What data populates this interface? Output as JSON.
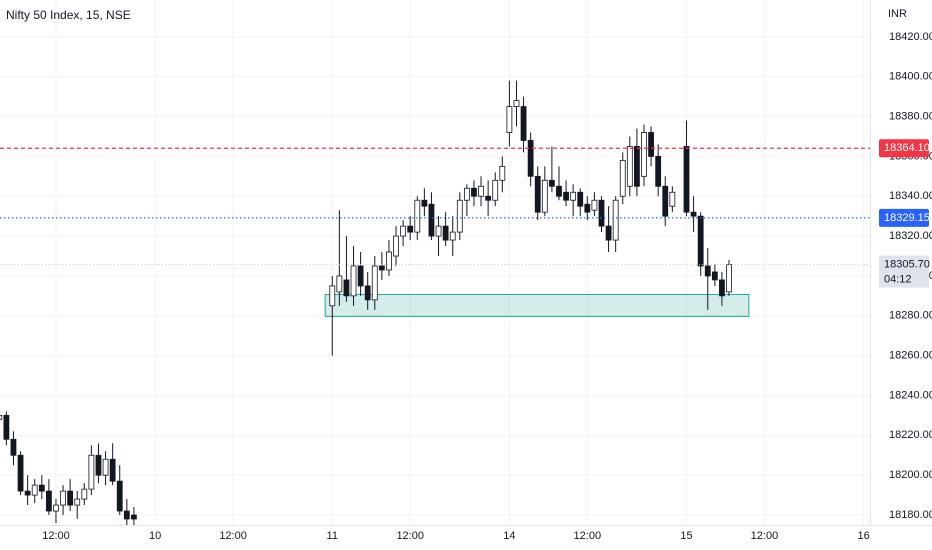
{
  "chart_data": {
    "type": "candlestick",
    "title": "Nifty 50 Index, 15, NSE",
    "currency": "INR",
    "x": [
      -47,
      -46,
      -45,
      -44,
      -43,
      -42,
      -41,
      -40,
      -39,
      -38,
      -37,
      -36,
      -35,
      -34,
      -33,
      -32,
      -31,
      -30,
      -29,
      -28,
      0,
      1,
      2,
      3,
      4,
      5,
      6,
      7,
      8,
      9,
      10,
      11,
      12,
      13,
      14,
      15,
      16,
      17,
      18,
      19,
      20,
      21,
      22,
      23,
      24,
      25,
      26,
      27,
      28,
      29,
      30,
      31,
      32,
      33,
      34,
      35,
      36,
      37,
      38,
      39,
      40,
      41,
      42,
      43,
      44,
      45,
      46,
      47,
      48,
      50,
      51,
      52,
      53,
      54,
      55,
      56
    ],
    "open": [
      18228,
      18230,
      18218,
      18210,
      18192,
      18190,
      18195,
      18192,
      18182,
      18185,
      18192,
      18185,
      18188,
      18193,
      18210,
      18200,
      18208,
      18197,
      18182,
      18180,
      18285,
      18292,
      18298,
      18290,
      18305,
      18295,
      18288,
      18305,
      18303,
      18310,
      18320,
      18325,
      18322,
      18338,
      18336,
      18320,
      18325,
      18318,
      18322,
      18338,
      18344,
      18340,
      18340,
      18338,
      18348,
      18372,
      18385,
      18385,
      18368,
      18350,
      18332,
      18348,
      18345,
      18342,
      18338,
      18342,
      18336,
      18333,
      18338,
      18325,
      18318,
      18340,
      18345,
      18365,
      18350,
      18372,
      18360,
      18345,
      18335,
      18365,
      18332,
      18330,
      18305,
      18302,
      18298,
      18292
    ],
    "high": [
      18235,
      18232,
      18222,
      18212,
      18200,
      18198,
      18200,
      18198,
      18188,
      18195,
      18198,
      18192,
      18196,
      18215,
      18216,
      18212,
      18216,
      18205,
      18188,
      18184,
      18300,
      18333,
      18320,
      18315,
      18312,
      18302,
      18310,
      18312,
      18318,
      18325,
      18328,
      18330,
      18340,
      18344,
      18342,
      18330,
      18332,
      18330,
      18342,
      18346,
      18348,
      18350,
      18348,
      18352,
      18360,
      18398,
      18398,
      18390,
      18372,
      18355,
      18355,
      18365,
      18355,
      18348,
      18346,
      18344,
      18340,
      18342,
      18340,
      18335,
      18340,
      18362,
      18370,
      18374,
      18376,
      18375,
      18366,
      18350,
      18345,
      18378,
      18340,
      18332,
      18314,
      18306,
      18302,
      18308
    ],
    "low": [
      18222,
      18215,
      18205,
      18190,
      18185,
      18186,
      18188,
      18180,
      18176,
      18180,
      18182,
      18178,
      18185,
      18190,
      18196,
      18195,
      18195,
      18180,
      18175,
      18172,
      18260,
      18285,
      18287,
      18285,
      18290,
      18283,
      18283,
      18298,
      18300,
      18305,
      18315,
      18318,
      18318,
      18330,
      18318,
      18310,
      18315,
      18310,
      18318,
      18330,
      18335,
      18335,
      18330,
      18335,
      18342,
      18365,
      18375,
      18362,
      18345,
      18328,
      18330,
      18342,
      18338,
      18335,
      18330,
      18330,
      18328,
      18330,
      18322,
      18312,
      18312,
      18336,
      18340,
      18340,
      18345,
      18355,
      18340,
      18325,
      18332,
      18330,
      18322,
      18300,
      18283,
      18295,
      18285,
      18290
    ],
    "close": [
      18230,
      18218,
      18210,
      18192,
      18190,
      18195,
      18192,
      18182,
      18185,
      18192,
      18185,
      18188,
      18193,
      18210,
      18200,
      18208,
      18197,
      18182,
      18178,
      18178,
      18295,
      18300,
      18290,
      18305,
      18295,
      18288,
      18305,
      18303,
      18312,
      18320,
      18325,
      18322,
      18338,
      18335,
      18320,
      18325,
      18318,
      18322,
      18338,
      18344,
      18340,
      18345,
      18338,
      18348,
      18355,
      18385,
      18388,
      18368,
      18350,
      18332,
      18348,
      18345,
      18340,
      18338,
      18342,
      18335,
      18332,
      18338,
      18325,
      18318,
      18338,
      18358,
      18365,
      18345,
      18372,
      18360,
      18345,
      18330,
      18342,
      18332,
      18330,
      18305,
      18300,
      18298,
      18290,
      18305.7
    ],
    "up_color": "#ffffff",
    "down_color": "#131722",
    "wick_color": "#131722",
    "xlim": [
      -46.9,
      75.9
    ],
    "ylim": [
      18177.5,
      18438.5
    ],
    "xticks": [
      {
        "value": -39,
        "label": "12:00"
      },
      {
        "value": -25,
        "label": "10"
      },
      {
        "value": -14,
        "label": "12:00"
      },
      {
        "value": 0,
        "label": "11"
      },
      {
        "value": 11,
        "label": "12:00"
      },
      {
        "value": 25,
        "label": "14"
      },
      {
        "value": 36,
        "label": "12:00"
      },
      {
        "value": 50,
        "label": "15"
      },
      {
        "value": 61,
        "label": "12:00"
      },
      {
        "value": 75,
        "label": "16"
      }
    ],
    "yticks": [
      {
        "value": 18180,
        "label": "18180.00"
      },
      {
        "value": 18200,
        "label": "18200.00"
      },
      {
        "value": 18220,
        "label": "18220.00"
      },
      {
        "value": 18240,
        "label": "18240.00"
      },
      {
        "value": 18260,
        "label": "18260.00"
      },
      {
        "value": 18280,
        "label": "18280.00"
      },
      {
        "value": 18300,
        "label": "18300.00"
      },
      {
        "value": 18320,
        "label": "18320.00"
      },
      {
        "value": 18340,
        "label": "18340.00"
      },
      {
        "value": 18360,
        "label": "18360.00"
      },
      {
        "value": 18380,
        "label": "18380.00"
      },
      {
        "value": 18400,
        "label": "18400.00"
      },
      {
        "value": 18420,
        "label": "18420.00"
      }
    ],
    "grid": true,
    "price_lines": [
      {
        "value": 18364.1,
        "label": "18364.10",
        "color": "#f23645",
        "style": "dashed"
      },
      {
        "value": 18329.15,
        "label": "18329.15",
        "color": "#2962ff",
        "style": "dotted"
      }
    ],
    "last_price": {
      "value": 18305.7,
      "label": "18305.70",
      "countdown": "04:12",
      "color": "#c8c8c8"
    },
    "zone": {
      "x": [
        -1,
        58.8
      ],
      "y": [
        18279.7,
        18290.7
      ],
      "color": "#26a69a"
    }
  }
}
